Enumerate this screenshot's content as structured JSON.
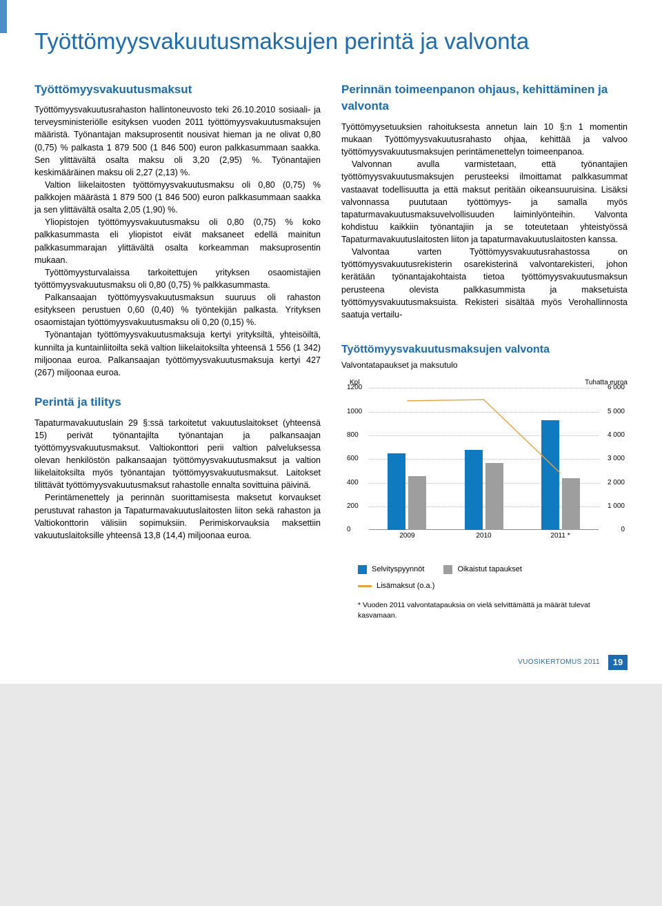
{
  "main_title": "Työttömyysvakuutusmaksujen perintä ja valvonta",
  "left": {
    "h_a": "Työttömyysvakuutusmaksut",
    "p_a1": "Työttömyysvakuutusrahaston hallintoneuvosto teki 26.10.2010 sosiaali- ja terveysministeriölle esityksen vuoden 2011 työttömyysvakuutusmaksujen määristä. Työnantajan maksuprosentit nousivat hieman ja ne olivat 0,80 (0,75) % palkasta 1 879 500 (1 846 500) euron palkkasummaan saakka. Sen ylittävältä osalta maksu oli 3,20 (2,95) %. Työnantajien keskimääräinen maksu oli 2,27 (2,13) %.",
    "p_a2": "Valtion liikelaitosten työttömyysvakuutusmaksu oli 0,80 (0,75) % palkkojen määrästä 1 879 500 (1 846 500) euron palkkasummaan saakka ja sen ylittävältä osalta 2,05 (1,90) %.",
    "p_a3": "Yliopistojen työttömyysvakuutusmaksu oli 0,80 (0,75) % koko palkkasummasta eli yliopistot eivät maksaneet edellä mainitun palkkasummarajan ylittävältä osalta korkeamman maksuprosentin mukaan.",
    "p_a4": "Työttömyysturvalaissa tarkoitettujen yrityksen osaomistajien työttömyysvakuutusmaksu oli 0,80 (0,75) % palkkasummasta.",
    "p_a5": "Palkansaajan työttömyysvakuutusmaksun suuruus oli rahaston esitykseen perustuen 0,60 (0,40) % työntekijän palkasta. Yrityksen osaomistajan työttömyysvakuutusmaksu oli 0,20 (0,15) %.",
    "p_a6": "Työnantajan työttömyysvakuutusmaksuja kertyi yrityksiltä, yhteisöiltä, kunnilta ja kuntainliitoilta sekä valtion liikelaitoksilta yhteensä 1 556 (1 342) miljoonaa euroa. Palkansaajan työttömyysvakuutusmaksuja kertyi 427 (267) miljoonaa euroa.",
    "h_b": "Perintä ja tilitys",
    "p_b1": "Tapaturmavakuutuslain 29 §:ssä tarkoitetut vakuutuslaitokset (yhteensä 15) perivät työnantajilta työnantajan ja palkansaajan työttömyysvakuutusmaksut. Valtiokonttori perii valtion palveluksessa olevan henkilöstön palkansaajan työttömyysvakuutusmaksut ja valtion liikelaitoksilta myös työnantajan työttömyysvakuutusmaksut. Laitokset tilittävät työttömyysvakuutusmaksut rahastolle ennalta sovittuina päivinä.",
    "p_b2": "Perintämenettely ja perinnän suorittamisesta maksetut korvaukset perustuvat rahaston ja Tapaturmavakuutuslaitosten liiton sekä rahaston ja Valtiokonttorin välisiin sopimuksiin. Perimiskorvauksia maksettiin vakuutuslaitoksille yhteensä 13,8 (14,4) miljoonaa euroa."
  },
  "right": {
    "h_c": "Perinnän toimeenpanon ohjaus, kehittäminen ja valvonta",
    "p_c1": "Työttömyysetuuksien rahoituksesta annetun lain 10 §:n 1 momentin mukaan Työttömyysvakuutusrahasto ohjaa, kehittää ja valvoo työttömyysvakuutusmaksujen perintämenettelyn toimeenpanoa.",
    "p_c2": "Valvonnan avulla varmistetaan, että työnantajien työttömyysvakuutusmaksujen perusteeksi ilmoittamat palkkasummat vastaavat todellisuutta ja että maksut peritään oikeansuuruisina. Lisäksi valvonnassa puututaan työttömyys- ja samalla myös tapaturmavakuutusmaksuvelvollisuuden laiminlyönteihin. Valvonta kohdistuu kaikkiin työnantajiin ja se toteutetaan yhteistyössä Tapaturmavakuutuslaitosten liiton ja tapaturmavakuutuslaitosten kanssa.",
    "p_c3": "Valvontaa varten Työttömyysvakuutusrahastossa on työttömyysvakuutusrekisterin osarekisterinä valvontarekisteri, johon kerätään työnantajakohtaista tietoa työttömyysvakuutusmaksun perusteena olevista palkkasummista ja maksetuista työttömyysvakuutusmaksuista. Rekisteri sisältää myös Verohallinnosta saatuja vertailu-"
  },
  "chart": {
    "title": "Työttömyysvakuutusmaksujen valvonta",
    "subtitle": "Valvontatapaukset ja maksutulo",
    "y_left_label": "Kpl",
    "y_right_label": "Tuhatta euroa",
    "y_left_max": 1200,
    "y_right_max": 6000,
    "y_ticks_left": [
      0,
      200,
      400,
      600,
      800,
      1000,
      1200
    ],
    "y_ticks_right": [
      0,
      1000,
      2000,
      3000,
      4000,
      5000,
      6000
    ],
    "categories": [
      "2009",
      "2010",
      "2011 *"
    ],
    "series": [
      {
        "name": "Selvityspyynnöt",
        "color": "#0f7ac0",
        "values": [
          650,
          680,
          930
        ]
      },
      {
        "name": "Oikaistut tapaukset",
        "color": "#9e9e9e",
        "values": [
          460,
          570,
          440
        ]
      }
    ],
    "line": {
      "name": "Lisämaksut (o.a.)",
      "color": "#e8a23a",
      "values": [
        5450,
        5500,
        2400
      ]
    },
    "grid_color": "#bcbcbc",
    "background": "#ffffff",
    "note": "* Vuoden 2011 valvontatapauksia on vielä selvittämättä ja määrät tulevat kasvamaan."
  },
  "footer": {
    "text": "VUOSIKERTOMUS 2011",
    "page": "19"
  }
}
